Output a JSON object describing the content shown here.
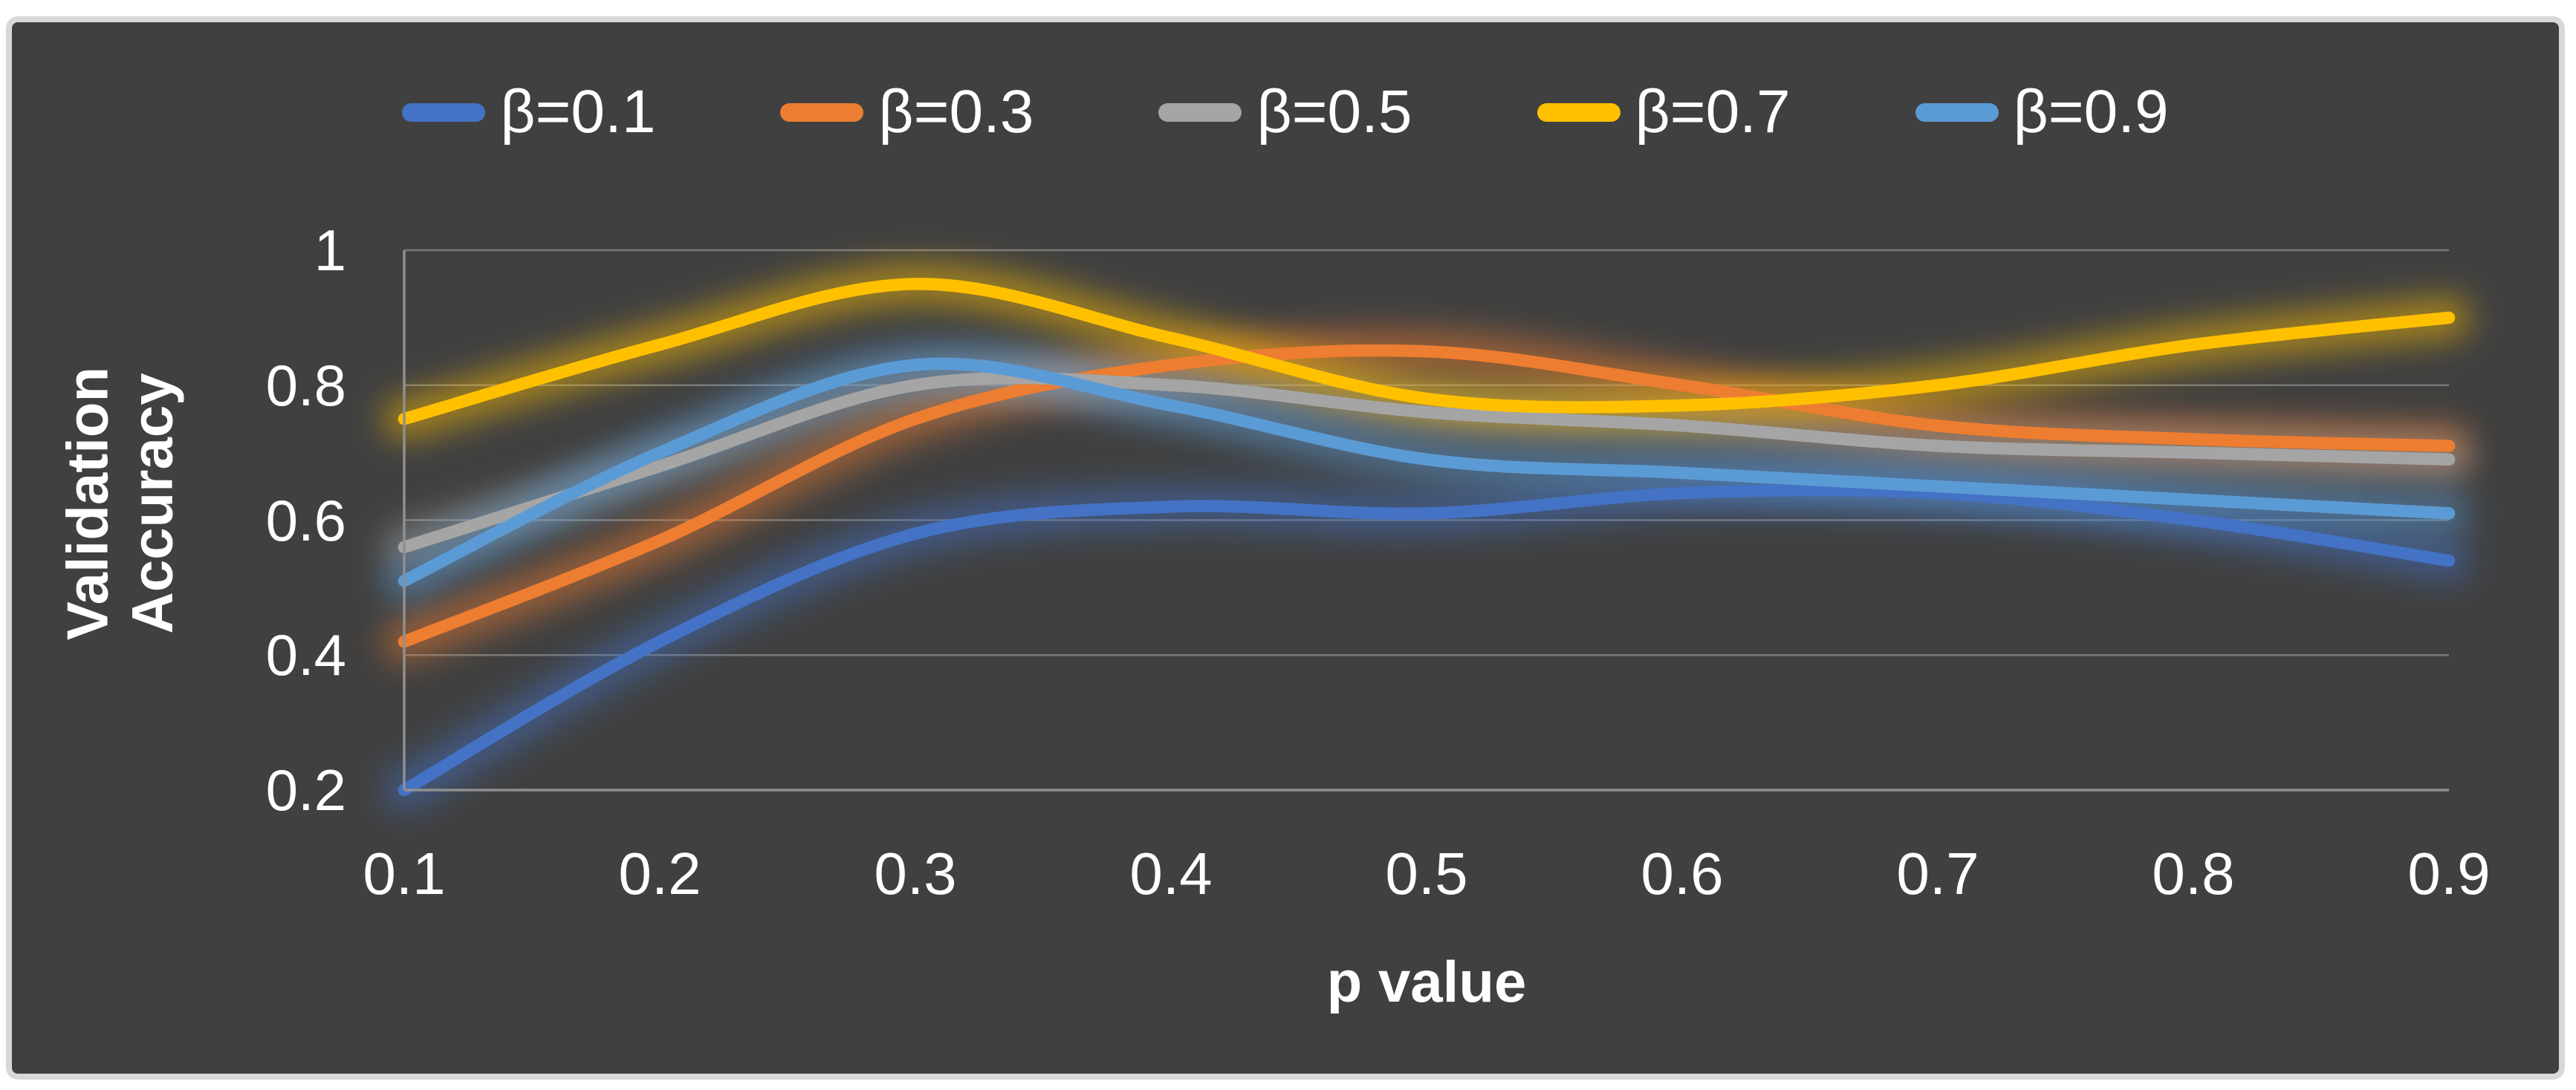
{
  "frame": {
    "page_background": "#ffffff",
    "border_color": "#d8d8d8",
    "panel_color": "#404040",
    "grid_color": "rgba(255,255,255,0.30)",
    "axis_color": "#8f8f8f",
    "text_color": "#ffffff"
  },
  "legend": {
    "items": [
      {
        "label": "β=0.1",
        "color": "#4472C4"
      },
      {
        "label": "β=0.3",
        "color": "#ED7D31"
      },
      {
        "label": "β=0.5",
        "color": "#A5A5A5"
      },
      {
        "label": "β=0.7",
        "color": "#FFC000"
      },
      {
        "label": "β=0.9",
        "color": "#5B9BD5"
      }
    ]
  },
  "axes": {
    "y_title_line1": "Validation",
    "y_title_line2": "Accuracy",
    "x_title": "p value",
    "y_tick_labels": [
      "1",
      "0.8",
      "0.6",
      "0.4",
      "0.2"
    ],
    "x_tick_labels": [
      "0.1",
      "0.2",
      "0.3",
      "0.4",
      "0.5",
      "0.6",
      "0.7",
      "0.8",
      "0.9"
    ]
  },
  "chart_data": {
    "type": "line",
    "smooth": true,
    "glow": true,
    "x": [
      0.1,
      0.2,
      0.3,
      0.4,
      0.5,
      0.6,
      0.7,
      0.8,
      0.9
    ],
    "xlabel": "p value",
    "ylabel": "Validation Accuracy",
    "ylim": [
      0.2,
      1.0
    ],
    "y_ticks": [
      1.0,
      0.8,
      0.6,
      0.4,
      0.2
    ],
    "gridline_values": [
      1.0,
      0.8,
      0.6,
      0.4
    ],
    "legend_position": "top-center",
    "series": [
      {
        "name": "β=0.1",
        "color": "#4472C4",
        "values": [
          0.2,
          0.42,
          0.58,
          0.62,
          0.61,
          0.64,
          0.64,
          0.6,
          0.54
        ]
      },
      {
        "name": "β=0.3",
        "color": "#ED7D31",
        "values": [
          0.42,
          0.57,
          0.75,
          0.83,
          0.85,
          0.8,
          0.74,
          0.72,
          0.71
        ]
      },
      {
        "name": "β=0.5",
        "color": "#A5A5A5",
        "values": [
          0.56,
          0.68,
          0.8,
          0.8,
          0.76,
          0.74,
          0.71,
          0.7,
          0.69
        ]
      },
      {
        "name": "β=0.7",
        "color": "#FFC000",
        "values": [
          0.75,
          0.86,
          0.95,
          0.87,
          0.78,
          0.77,
          0.8,
          0.86,
          0.9
        ]
      },
      {
        "name": "β=0.9",
        "color": "#5B9BD5",
        "values": [
          0.51,
          0.7,
          0.83,
          0.77,
          0.69,
          0.67,
          0.65,
          0.63,
          0.61
        ]
      }
    ]
  }
}
